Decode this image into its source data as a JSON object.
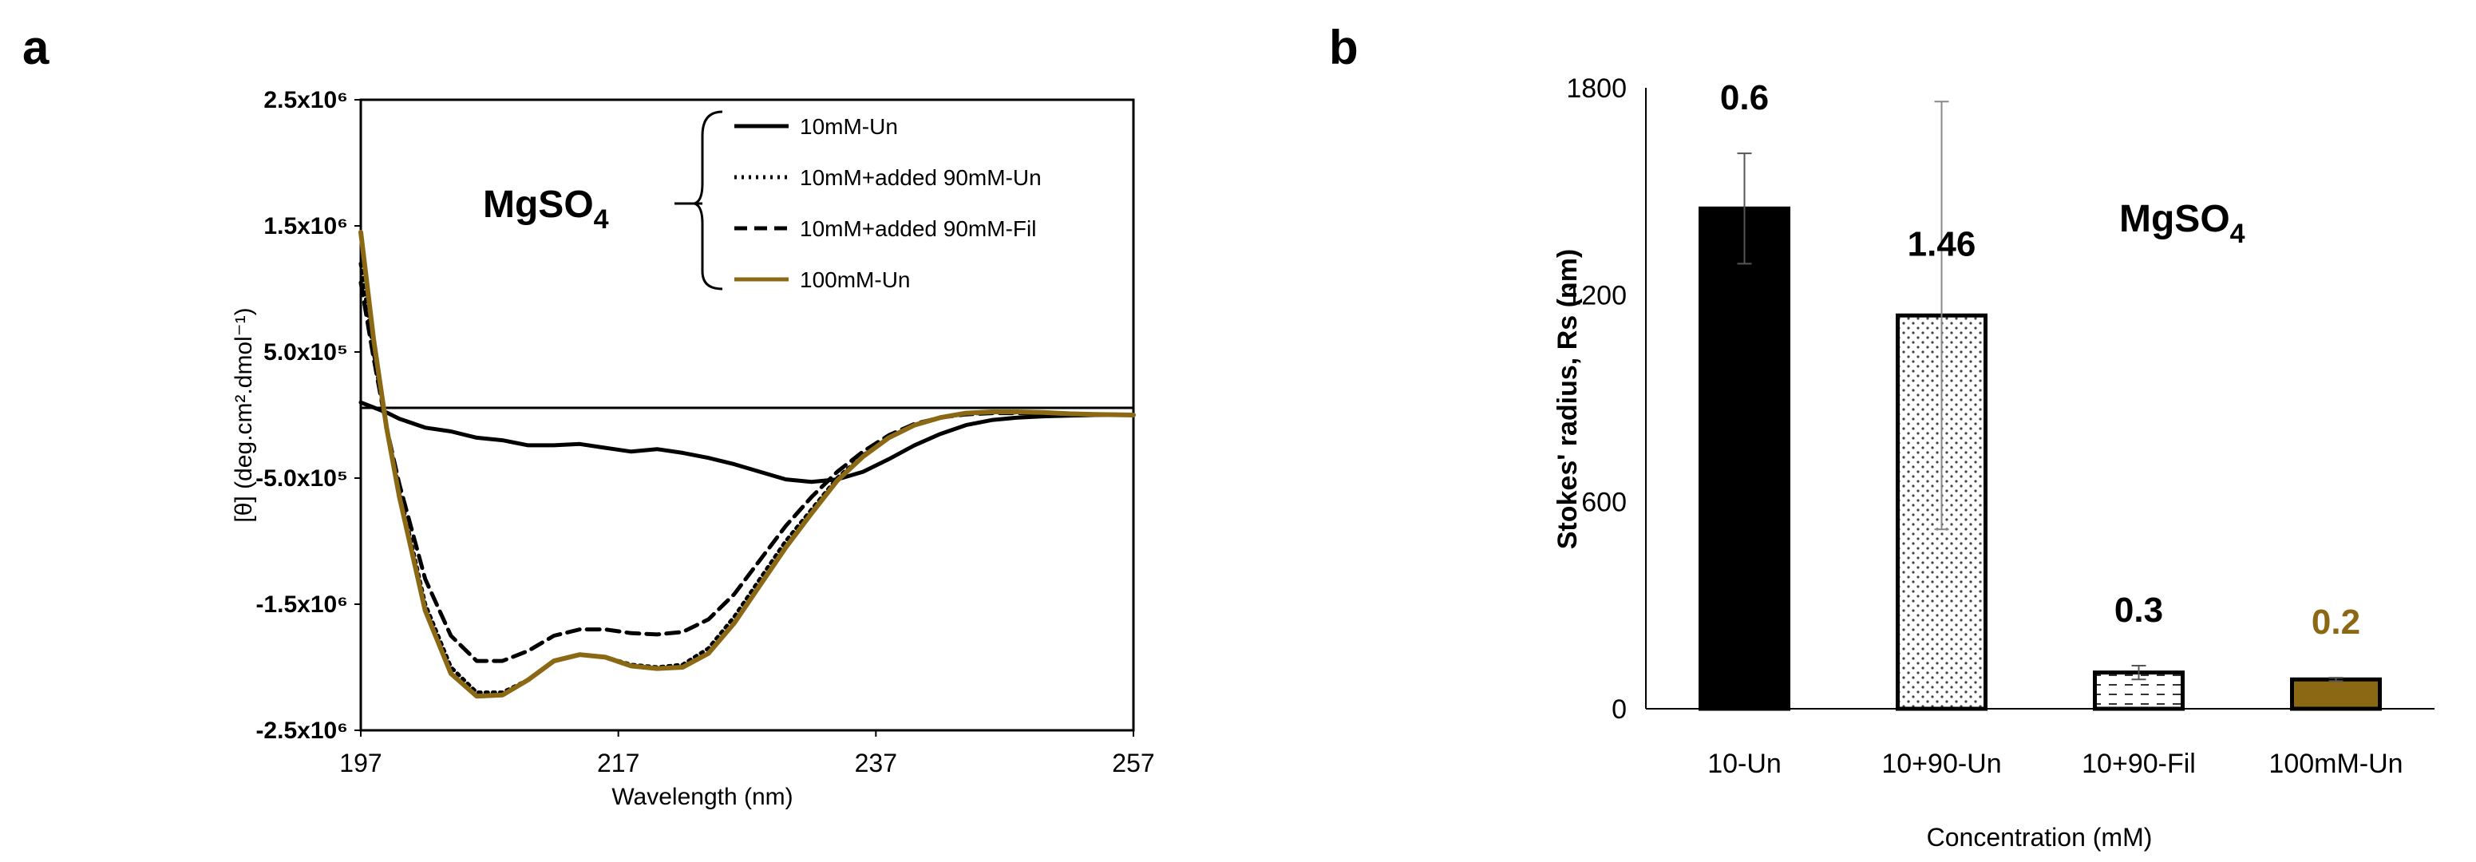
{
  "panel_a_label": "a",
  "panel_b_label": "b",
  "colors": {
    "black": "#000000",
    "gold": "#8B6914",
    "grid": "#d0d0d0"
  },
  "chart_data": [
    {
      "type": "line",
      "panel": "a",
      "title": "",
      "xlabel": "Wavelength (nm)",
      "ylabel": "[θ] (deg.cm².dmol⁻¹)",
      "xlim": [
        197,
        257
      ],
      "ylim": [
        -2500000,
        2500000
      ],
      "x_ticks": [
        197,
        217,
        237,
        257
      ],
      "y_tick_labels": [
        "2.5x10⁶",
        "1.5x10⁶",
        "5.0x10⁵",
        "-5.0x10⁵",
        "-1.5x10⁶",
        "-2.5x10⁶"
      ],
      "y_ticks": [
        2500000,
        1500000,
        500000,
        -500000,
        -1500000,
        -2500000
      ],
      "annotation": {
        "salt": "MgSO",
        "subscript": "4"
      },
      "legend": {
        "placement": "top-right",
        "entries": [
          "10mM-Un",
          "10mM+added 90mM-Un",
          "10mM+added 90mM-Fil",
          "100mM-Un"
        ]
      },
      "series": [
        {
          "name": "10mM-Un",
          "color": "#000000",
          "style": "solid",
          "x": [
            197,
            198,
            199,
            200,
            202,
            204,
            206,
            208,
            210,
            212,
            214,
            216,
            218,
            220,
            222,
            224,
            226,
            228,
            230,
            232,
            234,
            236,
            238,
            240,
            242,
            244,
            246,
            248,
            250,
            252,
            254,
            257
          ],
          "y": [
            100000,
            60000,
            20000,
            -30000,
            -100000,
            -130000,
            -180000,
            -200000,
            -240000,
            -240000,
            -230000,
            -260000,
            -290000,
            -270000,
            -300000,
            -340000,
            -390000,
            -450000,
            -510000,
            -530000,
            -510000,
            -450000,
            -350000,
            -240000,
            -150000,
            -80000,
            -40000,
            -20000,
            -10000,
            -5000,
            0,
            0
          ]
        },
        {
          "name": "10mM+added 90mM-Un",
          "color": "#000000",
          "style": "dotted",
          "x": [
            197,
            198,
            199,
            200,
            202,
            204,
            206,
            208,
            210,
            212,
            214,
            216,
            218,
            220,
            222,
            224,
            226,
            228,
            230,
            232,
            234,
            236,
            238,
            240,
            242,
            244,
            246,
            248,
            250,
            252,
            254,
            257
          ],
          "y": [
            1200000,
            500000,
            -100000,
            -600000,
            -1500000,
            -2000000,
            -2200000,
            -2200000,
            -2100000,
            -1950000,
            -1900000,
            -1920000,
            -1980000,
            -2000000,
            -1980000,
            -1850000,
            -1600000,
            -1300000,
            -1000000,
            -750000,
            -500000,
            -320000,
            -180000,
            -80000,
            -20000,
            10000,
            20000,
            20000,
            15000,
            10000,
            5000,
            0
          ]
        },
        {
          "name": "10mM+added 90mM-Fil",
          "color": "#000000",
          "style": "dashed",
          "x": [
            197,
            198,
            199,
            200,
            202,
            204,
            206,
            208,
            210,
            212,
            214,
            216,
            218,
            220,
            222,
            224,
            226,
            228,
            230,
            232,
            234,
            236,
            238,
            240,
            242,
            244,
            246,
            248,
            250,
            252,
            254,
            257
          ],
          "y": [
            1050000,
            450000,
            -100000,
            -550000,
            -1300000,
            -1750000,
            -1950000,
            -1950000,
            -1870000,
            -1750000,
            -1700000,
            -1700000,
            -1730000,
            -1740000,
            -1720000,
            -1620000,
            -1420000,
            -1150000,
            -880000,
            -650000,
            -450000,
            -290000,
            -160000,
            -70000,
            -20000,
            5000,
            15000,
            15000,
            10000,
            8000,
            5000,
            0
          ]
        },
        {
          "name": "100mM-Un",
          "color": "#8B6914",
          "style": "solid",
          "x": [
            197,
            198,
            199,
            200,
            202,
            204,
            206,
            208,
            210,
            212,
            214,
            216,
            218,
            220,
            222,
            224,
            226,
            228,
            230,
            232,
            234,
            236,
            238,
            240,
            242,
            244,
            246,
            248,
            250,
            252,
            254,
            257
          ],
          "y": [
            1450000,
            600000,
            -100000,
            -650000,
            -1550000,
            -2050000,
            -2230000,
            -2220000,
            -2100000,
            -1950000,
            -1900000,
            -1920000,
            -1990000,
            -2010000,
            -2000000,
            -1890000,
            -1650000,
            -1350000,
            -1050000,
            -780000,
            -520000,
            -330000,
            -180000,
            -80000,
            -20000,
            15000,
            25000,
            25000,
            20000,
            10000,
            5000,
            0
          ]
        }
      ]
    },
    {
      "type": "bar",
      "panel": "b",
      "title": "",
      "xlabel": "Concentration (mM)",
      "ylabel": "Stokes' radius, Rs (nm)",
      "ylim": [
        0,
        1800
      ],
      "y_ticks": [
        0,
        600,
        1200,
        1800
      ],
      "annotation": {
        "salt": "MgSO",
        "subscript": "4"
      },
      "categories": [
        "10-Un",
        "10+90-Un",
        "10+90-Fil",
        "100mM-Un"
      ],
      "values": [
        1450,
        1140,
        105,
        85
      ],
      "errors": [
        160,
        620,
        20,
        5
      ],
      "data_labels": [
        "0.6",
        "1.46",
        "0.3",
        "0.2"
      ],
      "data_label_colors": [
        "#000000",
        "#000000",
        "#000000",
        "#8B6914"
      ],
      "bar_fills": [
        "solid-black",
        "dots",
        "dashes",
        "solid-gold"
      ]
    }
  ]
}
